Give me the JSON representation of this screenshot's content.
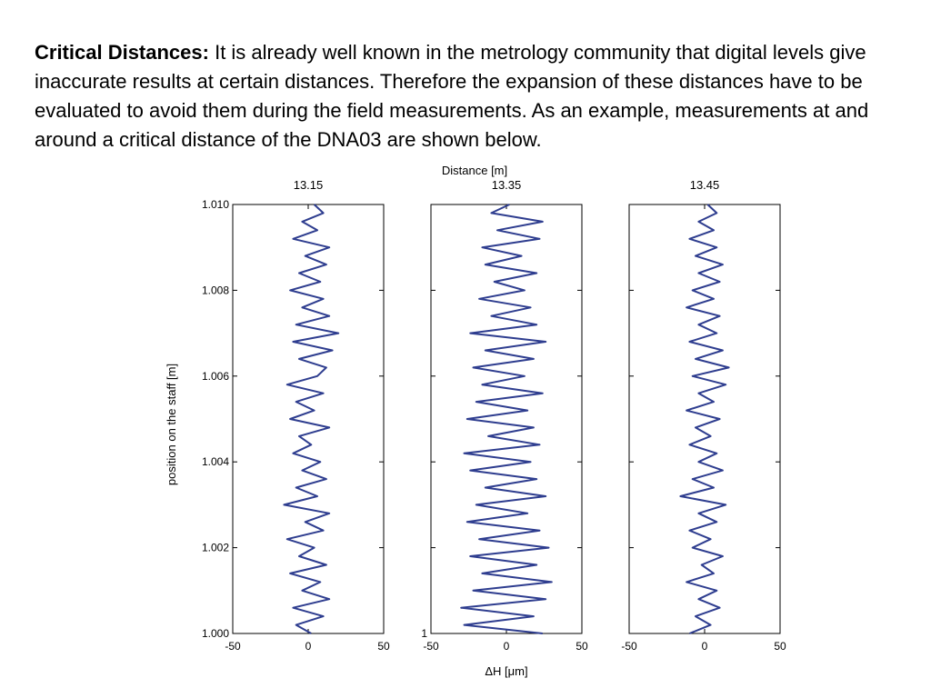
{
  "text": {
    "lead": "Critical Distances:",
    "body": " It is already well known in the metrology community that digital levels give inaccurate results at certain distances. Therefore the expansion of these distances have to be evaluated to avoid them during the field measurements. As an example, measurements at and around a critical distance of the DNA03 are shown below."
  },
  "chart_data": {
    "type": "line",
    "title": "Distance  [m]",
    "xlabel": "ΔH [μm]",
    "ylabel": "position on the staff [m]",
    "xlim": [
      -50,
      50
    ],
    "ylim": [
      1.0,
      1.01
    ],
    "xticks": [
      "-50",
      "0",
      "50"
    ],
    "yticks": [
      "1.000",
      "1.002",
      "1.004",
      "1.006",
      "1.008",
      "1.010"
    ],
    "middle_panel_ytick_label": "1",
    "line_color": "#2e3d8f",
    "panels": [
      {
        "name": "13.15",
        "series": {
          "y": [
            1.0,
            1.0002,
            1.0004,
            1.0006,
            1.0008,
            1.001,
            1.0012,
            1.0014,
            1.0016,
            1.0018,
            1.002,
            1.0022,
            1.0024,
            1.0026,
            1.0028,
            1.003,
            1.0032,
            1.0034,
            1.0036,
            1.0038,
            1.004,
            1.0042,
            1.0044,
            1.0046,
            1.0048,
            1.005,
            1.0052,
            1.0054,
            1.0056,
            1.0058,
            1.006,
            1.0062,
            1.0064,
            1.0066,
            1.0068,
            1.007,
            1.0072,
            1.0074,
            1.0076,
            1.0078,
            1.008,
            1.0082,
            1.0084,
            1.0086,
            1.0088,
            1.009,
            1.0092,
            1.0094,
            1.0096,
            1.0098,
            1.01
          ],
          "x": [
            2,
            -8,
            10,
            -10,
            14,
            -4,
            8,
            -12,
            12,
            -6,
            4,
            -14,
            10,
            -2,
            14,
            -16,
            6,
            -8,
            12,
            -4,
            8,
            -10,
            2,
            -6,
            14,
            -12,
            4,
            -8,
            10,
            -14,
            6,
            12,
            -6,
            16,
            -10,
            20,
            -8,
            14,
            -4,
            10,
            -12,
            8,
            -6,
            12,
            -2,
            14,
            -10,
            6,
            -4,
            10,
            4
          ]
        }
      },
      {
        "name": "13.35",
        "series": {
          "y": [
            1.0,
            1.0002,
            1.0004,
            1.0006,
            1.0008,
            1.001,
            1.0012,
            1.0014,
            1.0016,
            1.0018,
            1.002,
            1.0022,
            1.0024,
            1.0026,
            1.0028,
            1.003,
            1.0032,
            1.0034,
            1.0036,
            1.0038,
            1.004,
            1.0042,
            1.0044,
            1.0046,
            1.0048,
            1.005,
            1.0052,
            1.0054,
            1.0056,
            1.0058,
            1.006,
            1.0062,
            1.0064,
            1.0066,
            1.0068,
            1.007,
            1.0072,
            1.0074,
            1.0076,
            1.0078,
            1.008,
            1.0082,
            1.0084,
            1.0086,
            1.0088,
            1.009,
            1.0092,
            1.0094,
            1.0096,
            1.0098,
            1.01
          ],
          "x": [
            24,
            -28,
            18,
            -30,
            26,
            -22,
            30,
            -16,
            20,
            -24,
            28,
            -18,
            22,
            -26,
            14,
            -20,
            26,
            -14,
            20,
            -24,
            16,
            -28,
            22,
            -12,
            18,
            -26,
            14,
            -20,
            24,
            -16,
            12,
            -22,
            18,
            -14,
            26,
            -24,
            20,
            -10,
            16,
            -18,
            12,
            -8,
            20,
            -14,
            10,
            -16,
            22,
            -6,
            24,
            -10,
            2
          ]
        }
      },
      {
        "name": "13.45",
        "series": {
          "y": [
            1.0,
            1.0002,
            1.0004,
            1.0006,
            1.0008,
            1.001,
            1.0012,
            1.0014,
            1.0016,
            1.0018,
            1.002,
            1.0022,
            1.0024,
            1.0026,
            1.0028,
            1.003,
            1.0032,
            1.0034,
            1.0036,
            1.0038,
            1.004,
            1.0042,
            1.0044,
            1.0046,
            1.0048,
            1.005,
            1.0052,
            1.0054,
            1.0056,
            1.0058,
            1.006,
            1.0062,
            1.0064,
            1.0066,
            1.0068,
            1.007,
            1.0072,
            1.0074,
            1.0076,
            1.0078,
            1.008,
            1.0082,
            1.0084,
            1.0086,
            1.0088,
            1.009,
            1.0092,
            1.0094,
            1.0096,
            1.0098,
            1.01
          ],
          "x": [
            -10,
            4,
            -6,
            10,
            -4,
            8,
            -12,
            6,
            -2,
            12,
            -8,
            4,
            -10,
            8,
            -4,
            14,
            -16,
            6,
            -8,
            12,
            -4,
            8,
            -10,
            4,
            -6,
            10,
            -12,
            6,
            -4,
            14,
            -8,
            16,
            -6,
            12,
            -10,
            8,
            -4,
            10,
            -12,
            6,
            -8,
            10,
            -4,
            12,
            -6,
            8,
            -10,
            6,
            -4,
            8,
            2
          ]
        }
      }
    ]
  }
}
